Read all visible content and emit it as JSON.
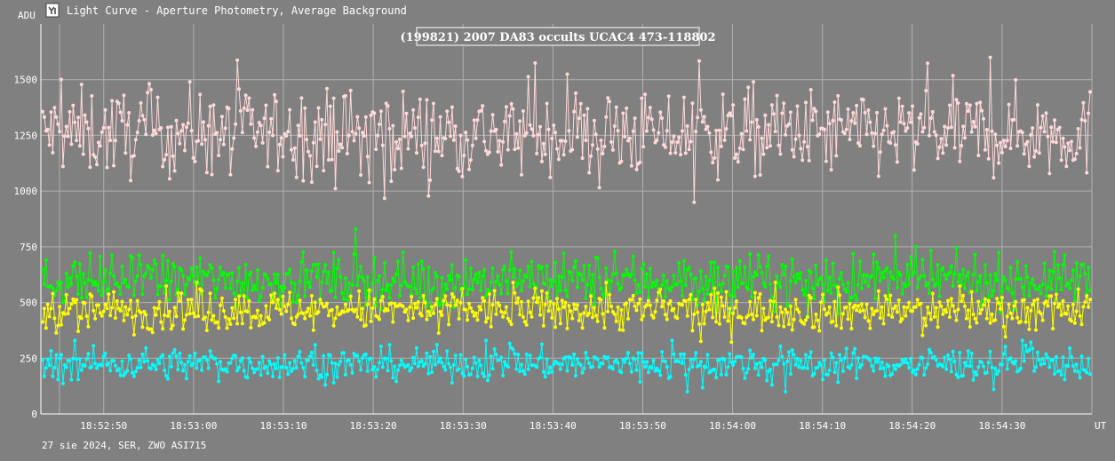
{
  "window": {
    "title": "Light Curve - Aperture Photometry, Average Background",
    "icon": "light-curve-app-icon"
  },
  "footer": {
    "caption": "27 sie 2024, SER, ZWO ASI715"
  },
  "chart_data": {
    "type": "line",
    "title": "(199821) 2007 DA83 occults UCAC4 473-118802",
    "ylabel": "ADU",
    "xlabel": "UT",
    "ylim": [
      0,
      1750
    ],
    "yticks": [
      0,
      250,
      500,
      750,
      1000,
      1250,
      1500
    ],
    "xlim": [
      "18:52:43",
      "18:54:40"
    ],
    "xticks": [
      "18:52:50",
      "18:53:00",
      "18:53:10",
      "18:53:20",
      "18:53:30",
      "18:53:40",
      "18:53:50",
      "18:54:00",
      "18:54:10",
      "18:54:20",
      "18:54:30"
    ],
    "grid": true,
    "legend": "none",
    "series": [
      {
        "color": "#ffd8d8",
        "mean": 1260,
        "spread": 95,
        "min": 950,
        "max": 1600
      },
      {
        "color": "#00ff00",
        "mean": 600,
        "spread": 55,
        "min": 440,
        "max": 830
      },
      {
        "color": "#ffff00",
        "mean": 465,
        "spread": 45,
        "min": 320,
        "max": 590
      },
      {
        "color": "#00ffff",
        "mean": 225,
        "spread": 35,
        "min": 100,
        "max": 330
      }
    ]
  }
}
